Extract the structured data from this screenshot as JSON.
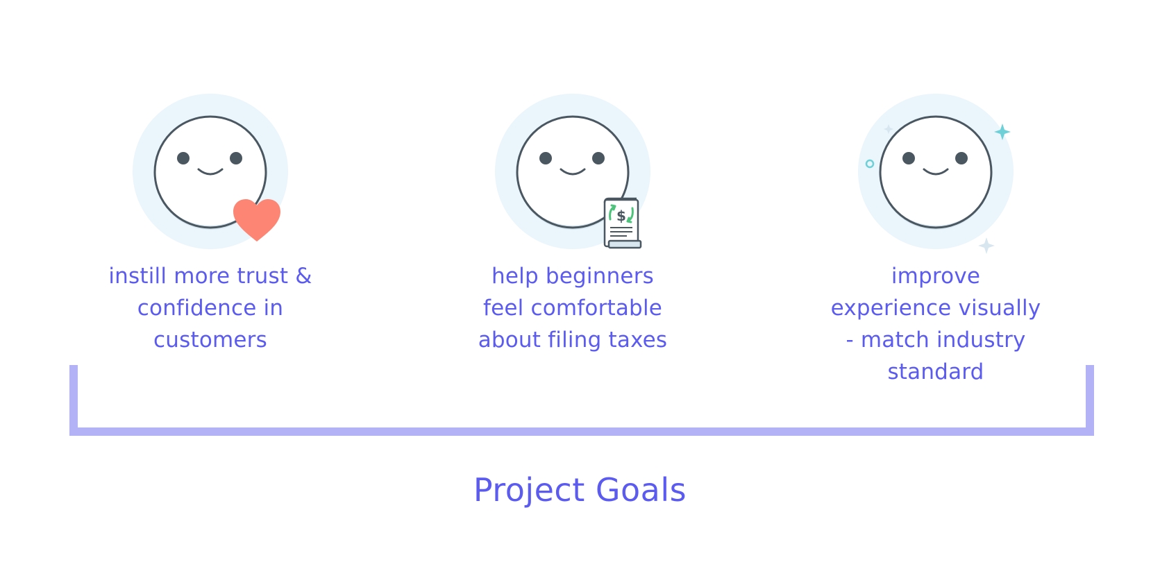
{
  "goals": [
    {
      "id": "trust",
      "lines": [
        "instill more trust &",
        "confidence in",
        "customers"
      ],
      "accent_icon": "heart-icon"
    },
    {
      "id": "beginners",
      "lines": [
        "help beginners",
        "feel comfortable",
        "about filing taxes"
      ],
      "accent_icon": "tax-receipt-icon"
    },
    {
      "id": "visual",
      "lines": [
        "improve",
        "experience visually",
        "- match industry",
        "standard"
      ],
      "accent_icon": "sparkle-icon"
    }
  ],
  "title": "Project Goals",
  "colors": {
    "text": "#5b5bf0",
    "bracket": "#b3b2f7",
    "halo": "#eaf5fc",
    "face_outline": "#4a5660",
    "face_shadow": "#d8e6f0",
    "heart": "#fd8574",
    "sparkle": "#6fd0d8",
    "money_green": "#4cc27a"
  }
}
